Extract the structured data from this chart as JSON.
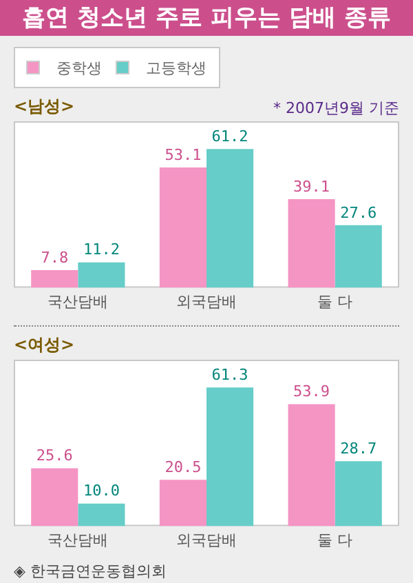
{
  "chart_data": [
    {
      "type": "bar",
      "title": "흡연 청소년 주로 피우는 담배 종류",
      "subtitle": "<남성>",
      "annotations": [
        "* 2007년9월 기준"
      ],
      "legend": "top left",
      "data_labels": true,
      "categories": [
        "국산담배",
        "외국담배",
        "둘 다"
      ],
      "series": [
        {
          "name": "중학생",
          "color": "#f495c4",
          "values": [
            7.8,
            53.1,
            39.1
          ]
        },
        {
          "name": "고등학생",
          "color": "#66cdc8",
          "values": [
            11.2,
            61.2,
            27.6
          ]
        }
      ]
    },
    {
      "type": "bar",
      "title": "<여성>",
      "annotations": [
        "◈ 한국금연운동협의회"
      ],
      "categories": [
        "국산담배",
        "외국담배",
        "둘 다"
      ],
      "series": [
        {
          "color": "#f495c4",
          "values": [
            25.6,
            20.5,
            53.9
          ],
          "value_labels": [
            "25.6",
            "20.5",
            "53.9"
          ]
        },
        {
          "color": "#66cdc8",
          "values": [
            10.0,
            61.3,
            28.7
          ],
          "value_labels": [
            "10.0",
            "61.3",
            "28.7"
          ]
        }
      ]
    }
  ]
}
